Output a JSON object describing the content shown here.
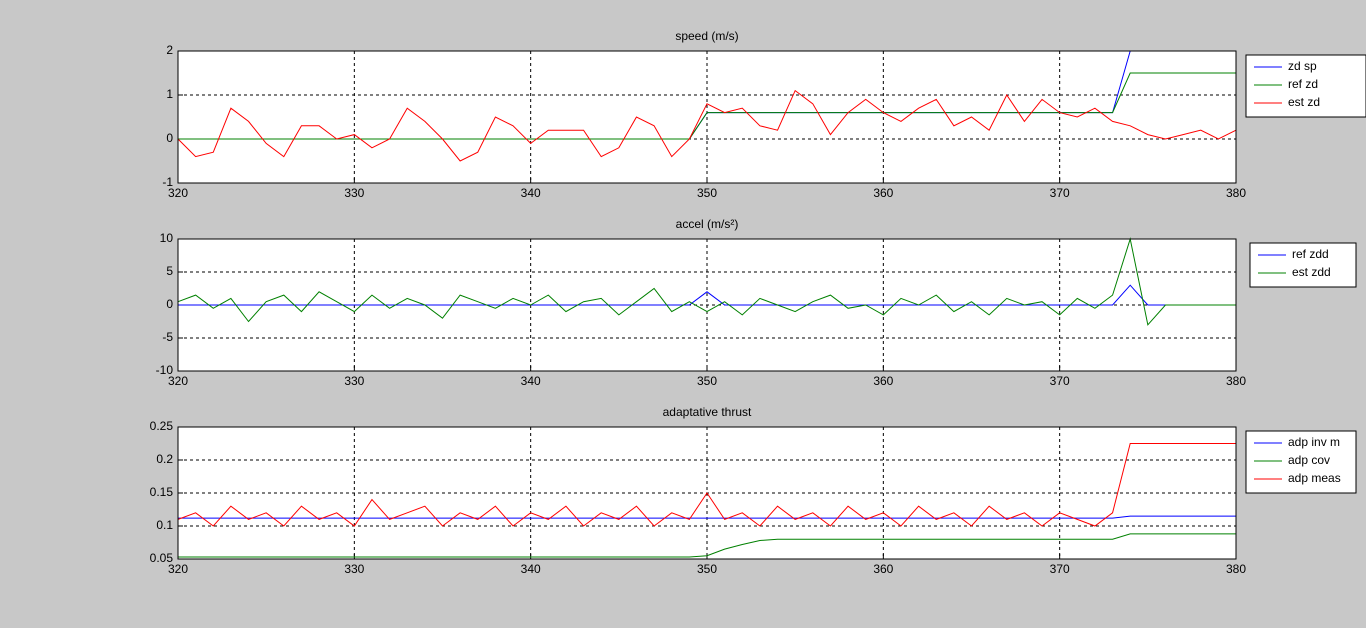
{
  "chart_data": [
    {
      "type": "line",
      "title": "speed (m/s)",
      "xlim": [
        320,
        380
      ],
      "xticks": [
        320,
        330,
        340,
        350,
        360,
        370,
        380
      ],
      "ylim": [
        -1,
        2
      ],
      "yticks": [
        -1,
        0,
        1,
        2
      ],
      "grid": true,
      "legend": "right",
      "x": [
        320,
        321,
        322,
        323,
        324,
        325,
        326,
        327,
        328,
        329,
        330,
        331,
        332,
        333,
        334,
        335,
        336,
        337,
        338,
        339,
        340,
        341,
        342,
        343,
        344,
        345,
        346,
        347,
        348,
        349,
        350,
        351,
        352,
        353,
        354,
        355,
        356,
        357,
        358,
        359,
        360,
        361,
        362,
        363,
        364,
        365,
        366,
        367,
        368,
        369,
        370,
        371,
        372,
        373,
        374,
        375,
        376,
        377,
        378,
        379,
        380
      ],
      "series": [
        {
          "name": "zd sp",
          "color": "#0000ff",
          "values": [
            0,
            0,
            0,
            0,
            0,
            0,
            0,
            0,
            0,
            0,
            0,
            0,
            0,
            0,
            0,
            0,
            0,
            0,
            0,
            0,
            0,
            0,
            0,
            0,
            0,
            0,
            0,
            0,
            0,
            0,
            0.6,
            0.6,
            0.6,
            0.6,
            0.6,
            0.6,
            0.6,
            0.6,
            0.6,
            0.6,
            0.6,
            0.6,
            0.6,
            0.6,
            0.6,
            0.6,
            0.6,
            0.6,
            0.6,
            0.6,
            0.6,
            0.6,
            0.6,
            0.6,
            2,
            2,
            2,
            2,
            2,
            2,
            2
          ]
        },
        {
          "name": "ref zd",
          "color": "#008000",
          "values": [
            0,
            0,
            0,
            0,
            0,
            0,
            0,
            0,
            0,
            0,
            0,
            0,
            0,
            0,
            0,
            0,
            0,
            0,
            0,
            0,
            0,
            0,
            0,
            0,
            0,
            0,
            0,
            0,
            0,
            0,
            0.6,
            0.6,
            0.6,
            0.6,
            0.6,
            0.6,
            0.6,
            0.6,
            0.6,
            0.6,
            0.6,
            0.6,
            0.6,
            0.6,
            0.6,
            0.6,
            0.6,
            0.6,
            0.6,
            0.6,
            0.6,
            0.6,
            0.6,
            0.6,
            1.5,
            1.5,
            1.5,
            1.5,
            1.5,
            1.5,
            1.5
          ]
        },
        {
          "name": "est zd",
          "color": "#ff0000",
          "values": [
            0,
            -0.4,
            -0.3,
            0.7,
            0.4,
            -0.1,
            -0.4,
            0.3,
            0.3,
            0,
            0.1,
            -0.2,
            0,
            0.7,
            0.4,
            0,
            -0.5,
            -0.3,
            0.5,
            0.3,
            -0.1,
            0.2,
            0.2,
            0.2,
            -0.4,
            -0.2,
            0.5,
            0.3,
            -0.4,
            0,
            0.8,
            0.6,
            0.7,
            0.3,
            0.2,
            1.1,
            0.8,
            0.1,
            0.6,
            0.9,
            0.6,
            0.4,
            0.7,
            0.9,
            0.3,
            0.5,
            0.2,
            1,
            0.4,
            0.9,
            0.6,
            0.5,
            0.7,
            0.4,
            0.3,
            0.1,
            0,
            0.1,
            0.2,
            0,
            0.2
          ]
        }
      ]
    },
    {
      "type": "line",
      "title": "accel (m/s²)",
      "xlim": [
        320,
        380
      ],
      "xticks": [
        320,
        330,
        340,
        350,
        360,
        370,
        380
      ],
      "ylim": [
        -10,
        10
      ],
      "yticks": [
        -10,
        -5,
        0,
        5,
        10
      ],
      "grid": true,
      "legend": "right",
      "x": [
        320,
        321,
        322,
        323,
        324,
        325,
        326,
        327,
        328,
        329,
        330,
        331,
        332,
        333,
        334,
        335,
        336,
        337,
        338,
        339,
        340,
        341,
        342,
        343,
        344,
        345,
        346,
        347,
        348,
        349,
        350,
        351,
        352,
        353,
        354,
        355,
        356,
        357,
        358,
        359,
        360,
        361,
        362,
        363,
        364,
        365,
        366,
        367,
        368,
        369,
        370,
        371,
        372,
        373,
        374,
        375,
        376,
        377,
        378,
        379,
        380
      ],
      "series": [
        {
          "name": "ref zdd",
          "color": "#0000ff",
          "values": [
            0,
            0,
            0,
            0,
            0,
            0,
            0,
            0,
            0,
            0,
            0,
            0,
            0,
            0,
            0,
            0,
            0,
            0,
            0,
            0,
            0,
            0,
            0,
            0,
            0,
            0,
            0,
            0,
            0,
            0,
            2,
            0,
            0,
            0,
            0,
            0,
            0,
            0,
            0,
            0,
            0,
            0,
            0,
            0,
            0,
            0,
            0,
            0,
            0,
            0,
            0,
            0,
            0,
            0,
            3,
            0,
            0,
            0,
            0,
            0,
            0
          ]
        },
        {
          "name": "est zdd",
          "color": "#008000",
          "values": [
            0.5,
            1.5,
            -0.5,
            1,
            -2.5,
            0.5,
            1.5,
            -1,
            2,
            0.5,
            -1,
            1.5,
            -0.5,
            1,
            0,
            -2,
            1.5,
            0.5,
            -0.5,
            1,
            0,
            1.5,
            -1,
            0.5,
            1,
            -1.5,
            0.5,
            2.5,
            -1,
            0.5,
            -1,
            0.5,
            -1.5,
            1,
            0,
            -1,
            0.5,
            1.5,
            -0.5,
            0,
            -1.5,
            1,
            0,
            1.5,
            -1,
            0.5,
            -1.5,
            1,
            0,
            0.5,
            -1.5,
            1,
            -0.5,
            1.5,
            10,
            -3,
            0,
            0,
            0,
            0,
            0
          ]
        }
      ]
    },
    {
      "type": "line",
      "title": "adaptative thrust",
      "xlim": [
        320,
        380
      ],
      "xticks": [
        320,
        330,
        340,
        350,
        360,
        370,
        380
      ],
      "ylim": [
        0.05,
        0.25
      ],
      "yticks": [
        0.05,
        0.1,
        0.15,
        0.2,
        0.25
      ],
      "grid": true,
      "legend": "right",
      "x": [
        320,
        321,
        322,
        323,
        324,
        325,
        326,
        327,
        328,
        329,
        330,
        331,
        332,
        333,
        334,
        335,
        336,
        337,
        338,
        339,
        340,
        341,
        342,
        343,
        344,
        345,
        346,
        347,
        348,
        349,
        350,
        351,
        352,
        353,
        354,
        355,
        356,
        357,
        358,
        359,
        360,
        361,
        362,
        363,
        364,
        365,
        366,
        367,
        368,
        369,
        370,
        371,
        372,
        373,
        374,
        375,
        376,
        377,
        378,
        379,
        380
      ],
      "series": [
        {
          "name": "adp inv m",
          "color": "#0000ff",
          "values": [
            0.112,
            0.112,
            0.112,
            0.112,
            0.112,
            0.112,
            0.112,
            0.112,
            0.112,
            0.112,
            0.112,
            0.112,
            0.112,
            0.112,
            0.112,
            0.112,
            0.112,
            0.112,
            0.112,
            0.112,
            0.112,
            0.112,
            0.112,
            0.112,
            0.112,
            0.112,
            0.112,
            0.112,
            0.112,
            0.112,
            0.112,
            0.112,
            0.112,
            0.112,
            0.112,
            0.112,
            0.112,
            0.112,
            0.112,
            0.112,
            0.112,
            0.112,
            0.112,
            0.112,
            0.112,
            0.112,
            0.112,
            0.112,
            0.112,
            0.112,
            0.112,
            0.112,
            0.112,
            0.112,
            0.115,
            0.115,
            0.115,
            0.115,
            0.115,
            0.115,
            0.115
          ]
        },
        {
          "name": "adp cov",
          "color": "#008000",
          "values": [
            0.053,
            0.053,
            0.053,
            0.053,
            0.053,
            0.053,
            0.053,
            0.053,
            0.053,
            0.053,
            0.053,
            0.053,
            0.053,
            0.053,
            0.053,
            0.053,
            0.053,
            0.053,
            0.053,
            0.053,
            0.053,
            0.053,
            0.053,
            0.053,
            0.053,
            0.053,
            0.053,
            0.053,
            0.053,
            0.053,
            0.055,
            0.065,
            0.072,
            0.078,
            0.08,
            0.08,
            0.08,
            0.08,
            0.08,
            0.08,
            0.08,
            0.08,
            0.08,
            0.08,
            0.08,
            0.08,
            0.08,
            0.08,
            0.08,
            0.08,
            0.08,
            0.08,
            0.08,
            0.08,
            0.088,
            0.088,
            0.088,
            0.088,
            0.088,
            0.088,
            0.088
          ]
        },
        {
          "name": "adp meas",
          "color": "#ff0000",
          "values": [
            0.11,
            0.12,
            0.1,
            0.13,
            0.11,
            0.12,
            0.1,
            0.13,
            0.11,
            0.12,
            0.1,
            0.14,
            0.11,
            0.12,
            0.13,
            0.1,
            0.12,
            0.11,
            0.13,
            0.1,
            0.12,
            0.11,
            0.13,
            0.1,
            0.12,
            0.11,
            0.13,
            0.1,
            0.12,
            0.11,
            0.15,
            0.11,
            0.12,
            0.1,
            0.13,
            0.11,
            0.12,
            0.1,
            0.13,
            0.11,
            0.12,
            0.1,
            0.13,
            0.11,
            0.12,
            0.1,
            0.13,
            0.11,
            0.12,
            0.1,
            0.12,
            0.11,
            0.1,
            0.12,
            0.225,
            0.225,
            0.225,
            0.225,
            0.225,
            0.225,
            0.225
          ]
        }
      ]
    }
  ]
}
